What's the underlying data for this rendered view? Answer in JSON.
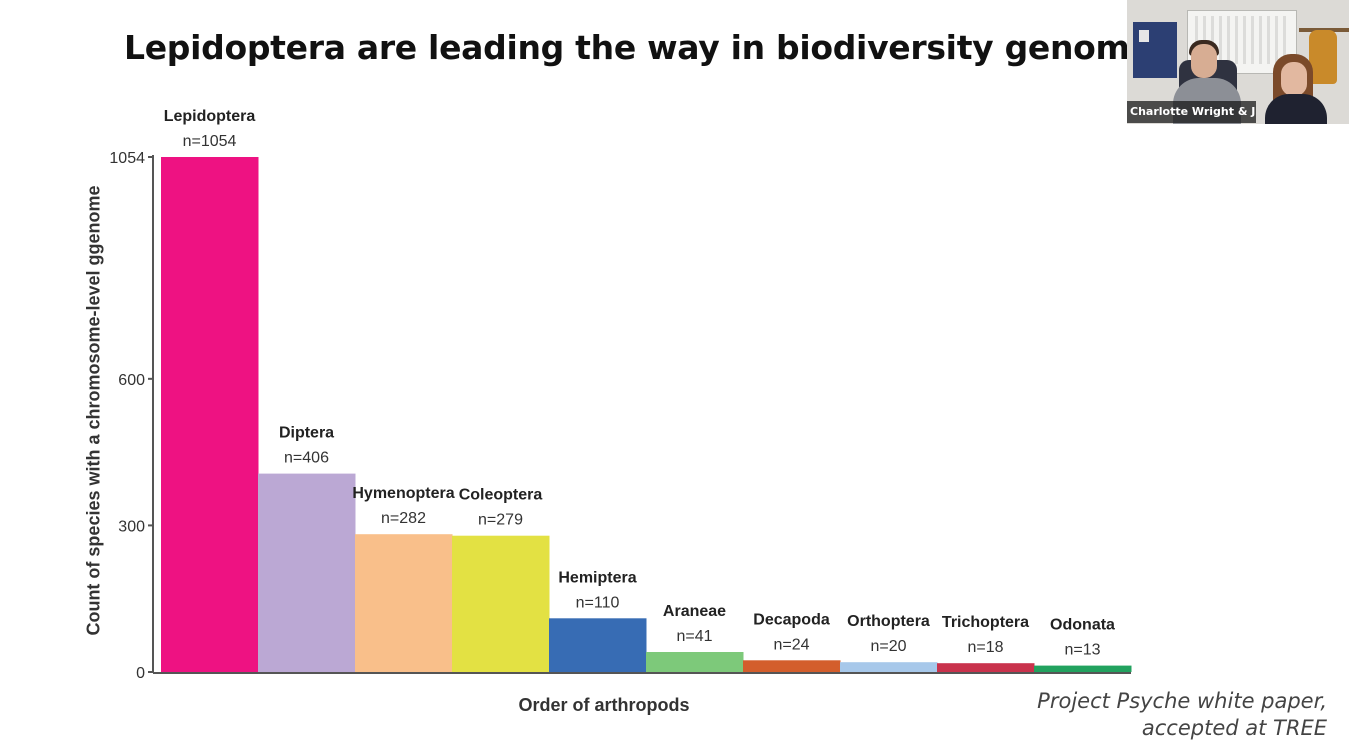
{
  "slide": {
    "title": "Lepidoptera are leading the way in biodiversity genomics",
    "citation_line1": "Project Psyche white paper,",
    "citation_line2": "accepted at TREE"
  },
  "video": {
    "participant_name": "Charlotte Wright & J..."
  },
  "chart_data": {
    "type": "bar",
    "title": "",
    "xlabel": "Order of arthropods",
    "ylabel": "Count of species with a chromosome-level ggenome",
    "ylim": [
      0,
      1054
    ],
    "yticks": [
      0,
      300,
      600,
      1054
    ],
    "grid": false,
    "categories": [
      "Lepidoptera",
      "Diptera",
      "Hymenoptera",
      "Coleoptera",
      "Hemiptera",
      "Araneae",
      "Decapoda",
      "Orthoptera",
      "Trichoptera",
      "Odonata"
    ],
    "values": [
      1054,
      406,
      282,
      279,
      110,
      41,
      24,
      20,
      18,
      13
    ],
    "value_labels": [
      "n=1054",
      "n=406",
      "n=282",
      "n=279",
      "n=110",
      "n=41",
      "n=24",
      "n=20",
      "n=18",
      "n=13"
    ],
    "colors": [
      "#ee1282",
      "#bba8d4",
      "#f9bf8a",
      "#e3e143",
      "#376cb4",
      "#7dc97a",
      "#d35e2c",
      "#a7c8ea",
      "#c9324c",
      "#22a25f"
    ]
  }
}
